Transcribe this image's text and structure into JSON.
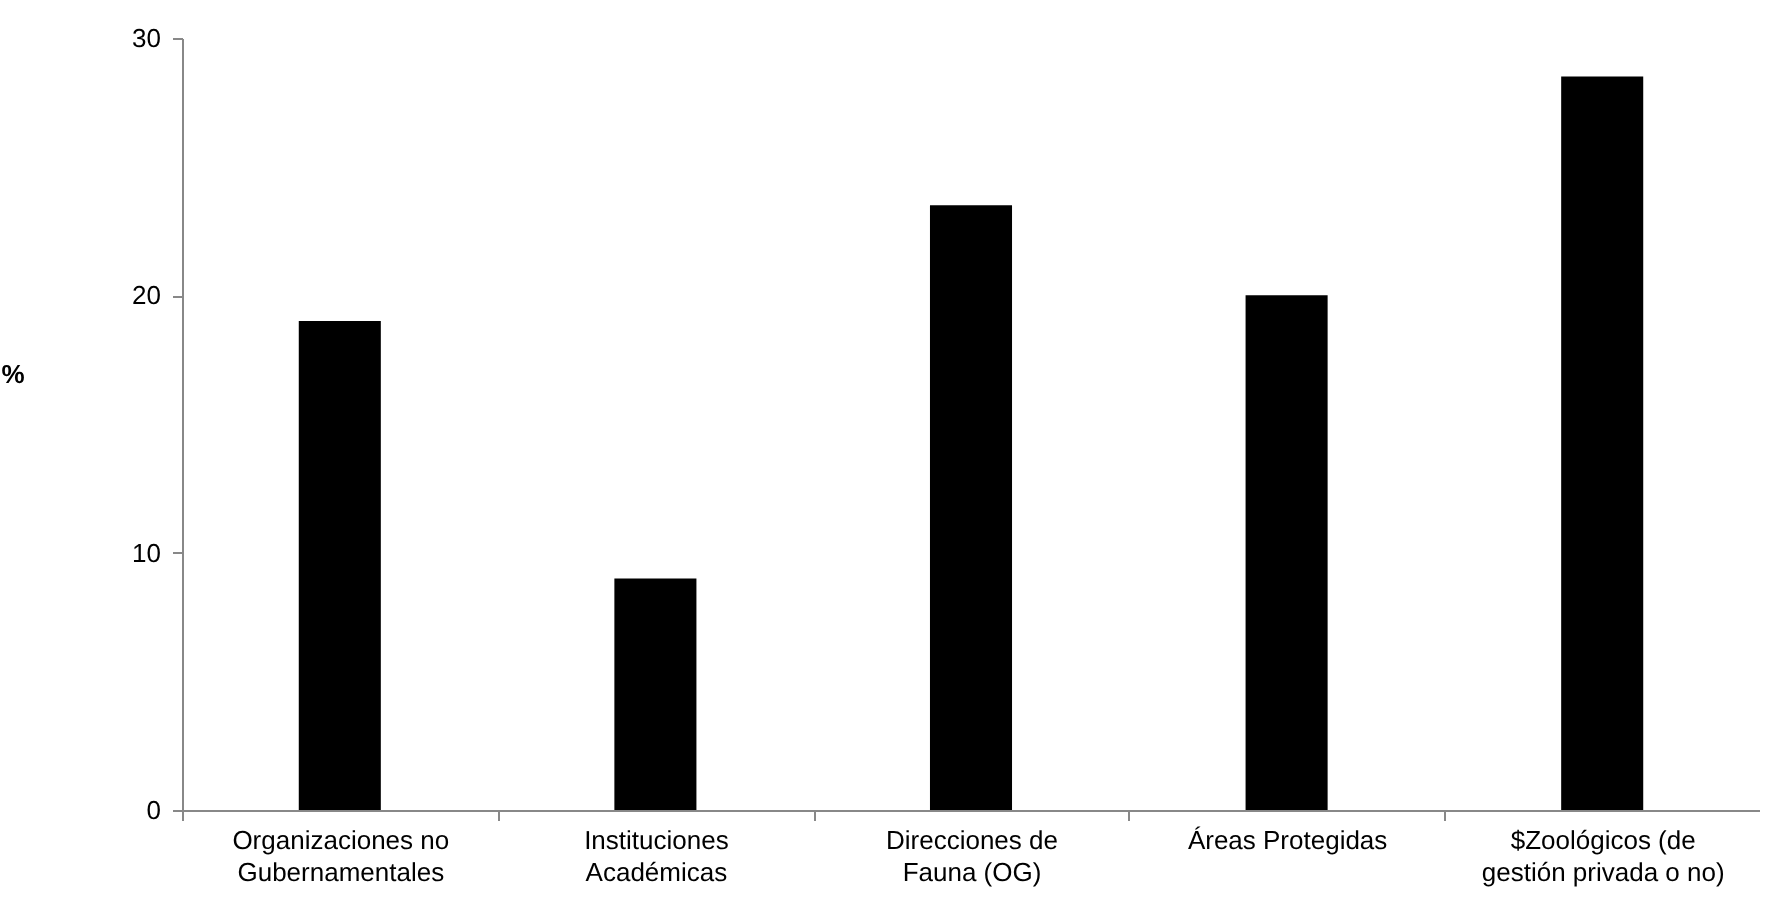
{
  "chart_data": {
    "type": "bar",
    "ylabel": "%",
    "categories": [
      "Organizaciones no\nGubernamentales",
      "Instituciones\nAcadémicas",
      "Direcciones de\nFauna (OG)",
      "Áreas Protegidas",
      "$Zoológicos (de\ngestión privada o no)"
    ],
    "values": [
      19,
      9,
      23.5,
      20,
      28.5
    ],
    "color": "#000000",
    "ylim": [
      0,
      30
    ],
    "yticks": [
      0,
      10,
      20,
      30
    ],
    "grid": false
  }
}
